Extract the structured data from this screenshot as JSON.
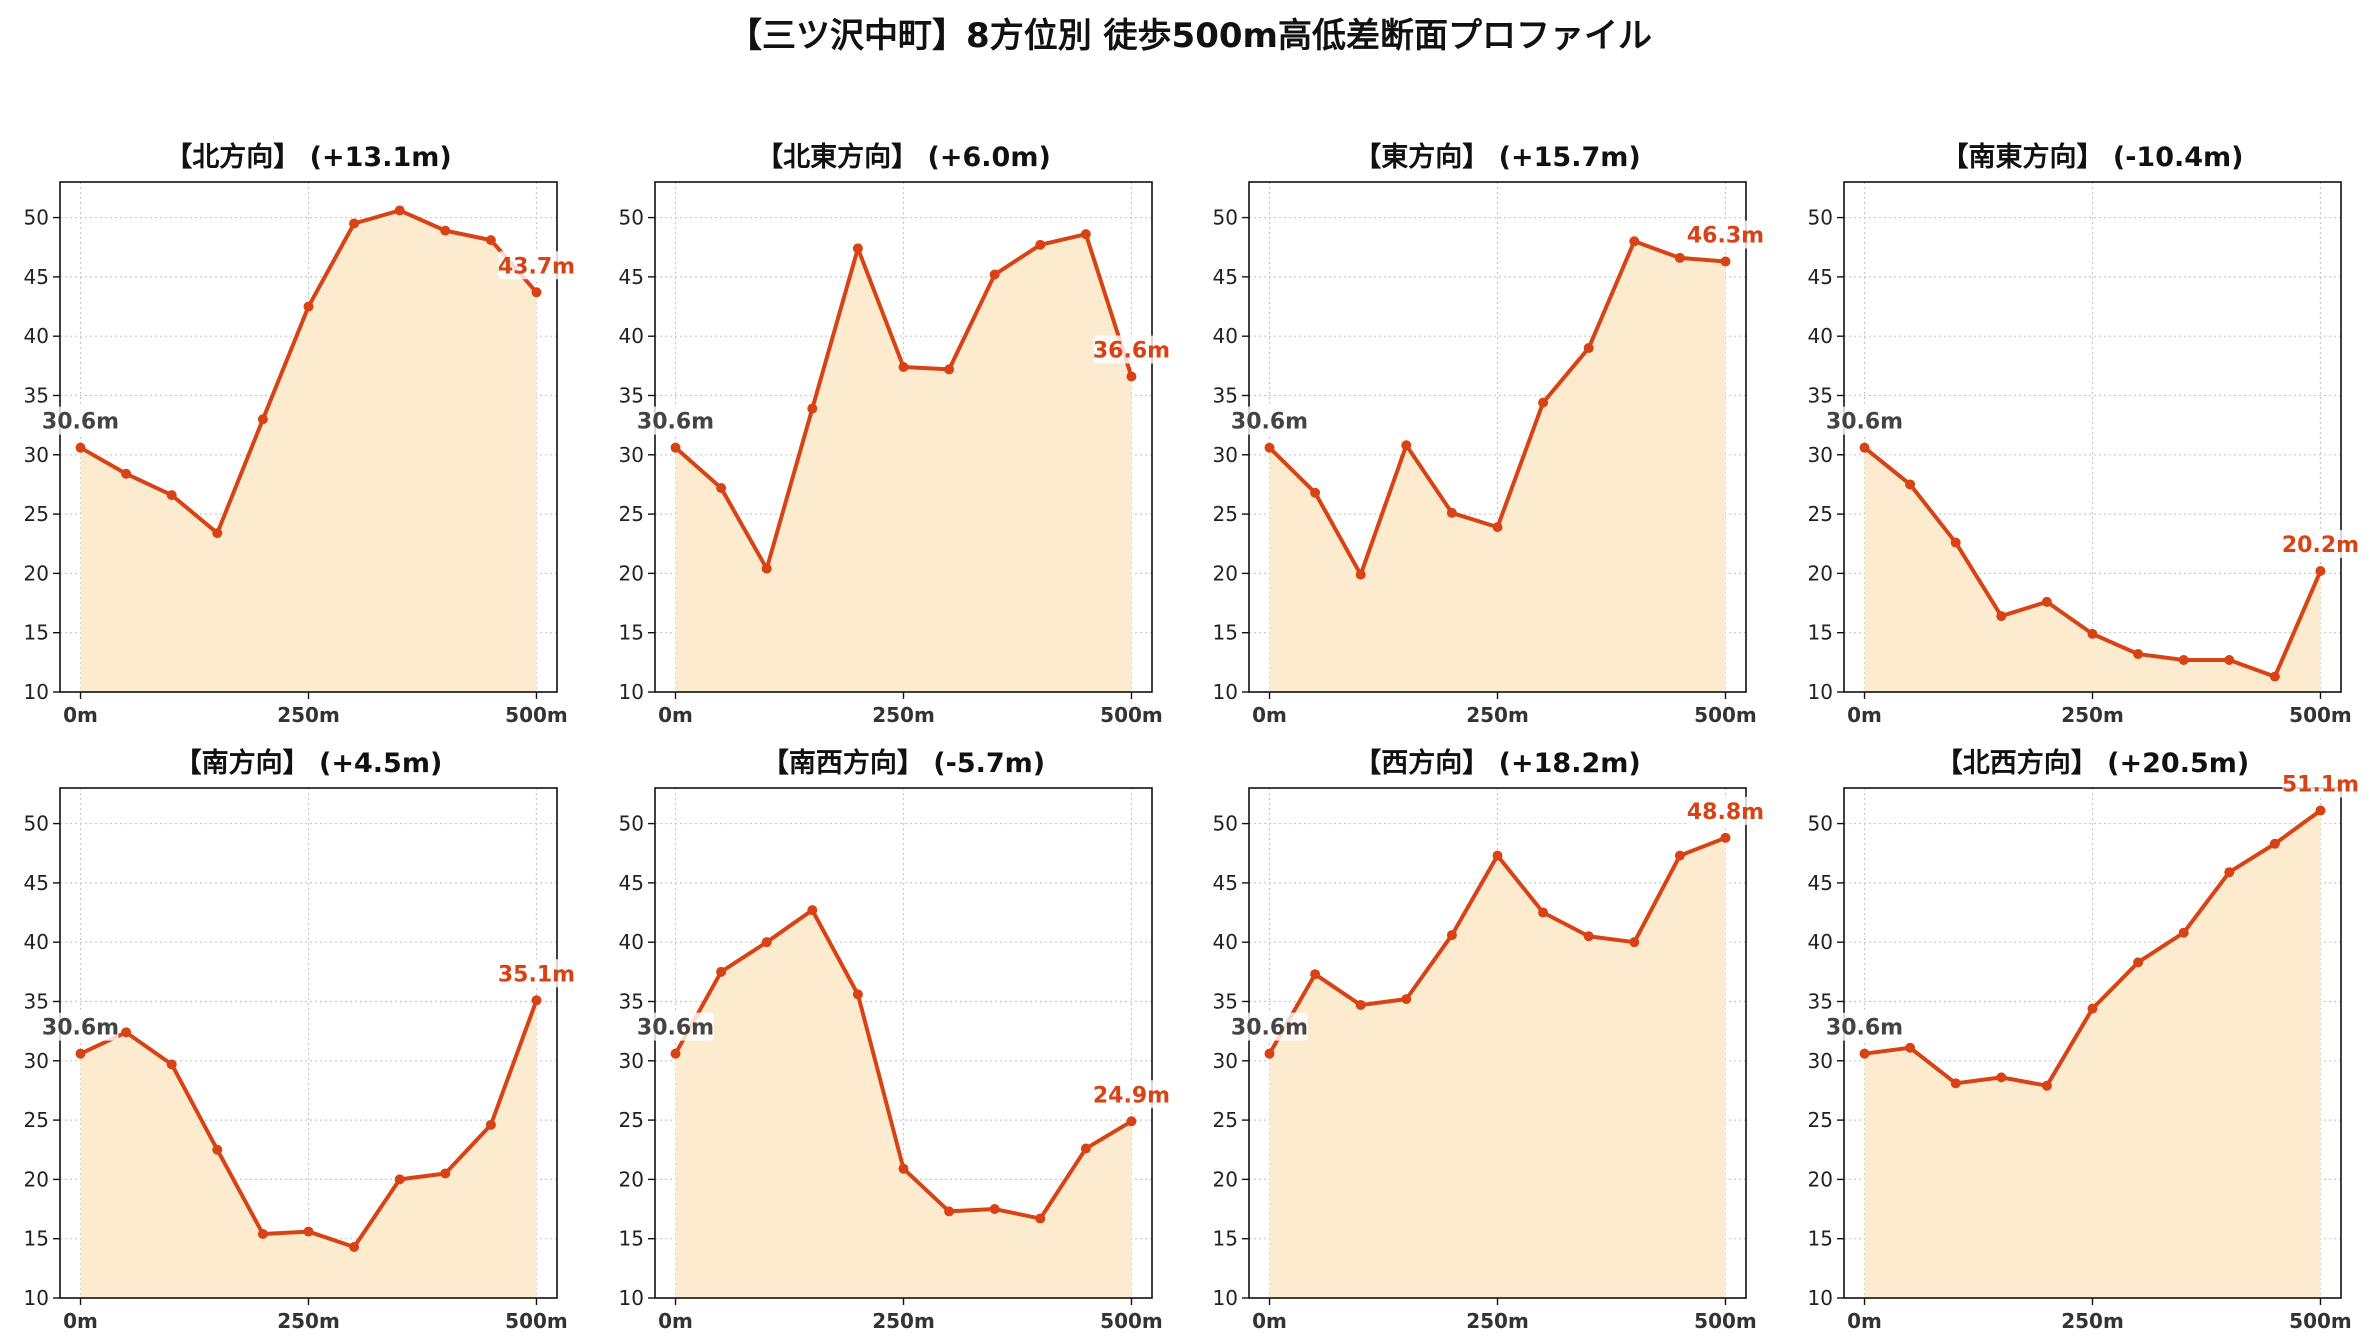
{
  "title": "【三ツ沢中町】8方位別 徒歩500m高低差断面プロファイル",
  "colors": {
    "line": "#d84315",
    "fill": "#fdebd0",
    "grid": "#c8c8c8",
    "start_label": "#444444",
    "end_label": "#d84315"
  },
  "chart_data": [
    {
      "type": "area",
      "title": "【北方向】 (+13.1m)",
      "x": [
        0,
        50,
        100,
        150,
        200,
        250,
        300,
        350,
        400,
        450,
        500
      ],
      "y": [
        30.6,
        28.4,
        26.6,
        23.4,
        33.0,
        42.5,
        49.5,
        50.6,
        48.9,
        48.1,
        43.7
      ],
      "start_label": "30.6m",
      "end_label": "43.7m",
      "ylim": [
        10,
        53
      ],
      "xlim": [
        0,
        500
      ],
      "yticks": [
        10,
        15,
        20,
        25,
        30,
        35,
        40,
        45,
        50
      ],
      "xticks": [
        0,
        250,
        500
      ],
      "xtick_labels": [
        "0m",
        "250m",
        "500m"
      ],
      "grid": true
    },
    {
      "type": "area",
      "title": "【北東方向】 (+6.0m)",
      "x": [
        0,
        50,
        100,
        150,
        200,
        250,
        300,
        350,
        400,
        450,
        500
      ],
      "y": [
        30.6,
        27.2,
        20.4,
        33.9,
        47.4,
        37.4,
        37.2,
        45.2,
        47.7,
        48.6,
        36.6
      ],
      "start_label": "30.6m",
      "end_label": "36.6m",
      "ylim": [
        10,
        53
      ],
      "xlim": [
        0,
        500
      ],
      "yticks": [
        10,
        15,
        20,
        25,
        30,
        35,
        40,
        45,
        50
      ],
      "xticks": [
        0,
        250,
        500
      ],
      "xtick_labels": [
        "0m",
        "250m",
        "500m"
      ],
      "grid": true
    },
    {
      "type": "area",
      "title": "【東方向】 (+15.7m)",
      "x": [
        0,
        50,
        100,
        150,
        200,
        250,
        300,
        350,
        400,
        450,
        500
      ],
      "y": [
        30.6,
        26.8,
        19.9,
        30.8,
        25.1,
        23.9,
        34.4,
        39.0,
        48.0,
        46.6,
        46.3
      ],
      "start_label": "30.6m",
      "end_label": "46.3m",
      "ylim": [
        10,
        53
      ],
      "xlim": [
        0,
        500
      ],
      "yticks": [
        10,
        15,
        20,
        25,
        30,
        35,
        40,
        45,
        50
      ],
      "xticks": [
        0,
        250,
        500
      ],
      "xtick_labels": [
        "0m",
        "250m",
        "500m"
      ],
      "grid": true
    },
    {
      "type": "area",
      "title": "【南東方向】 (-10.4m)",
      "x": [
        0,
        50,
        100,
        150,
        200,
        250,
        300,
        350,
        400,
        450,
        500
      ],
      "y": [
        30.6,
        27.5,
        22.6,
        16.4,
        17.6,
        14.9,
        13.2,
        12.7,
        12.7,
        11.3,
        20.2
      ],
      "start_label": "30.6m",
      "end_label": "20.2m",
      "ylim": [
        10,
        53
      ],
      "xlim": [
        0,
        500
      ],
      "yticks": [
        10,
        15,
        20,
        25,
        30,
        35,
        40,
        45,
        50
      ],
      "xticks": [
        0,
        250,
        500
      ],
      "xtick_labels": [
        "0m",
        "250m",
        "500m"
      ],
      "grid": true
    },
    {
      "type": "area",
      "title": "【南方向】 (+4.5m)",
      "x": [
        0,
        50,
        100,
        150,
        200,
        250,
        300,
        350,
        400,
        450,
        500
      ],
      "y": [
        30.6,
        32.4,
        29.7,
        22.5,
        15.4,
        15.6,
        14.3,
        20.0,
        20.5,
        24.6,
        35.1
      ],
      "start_label": "30.6m",
      "end_label": "35.1m",
      "ylim": [
        10,
        53
      ],
      "xlim": [
        0,
        500
      ],
      "yticks": [
        10,
        15,
        20,
        25,
        30,
        35,
        40,
        45,
        50
      ],
      "xticks": [
        0,
        250,
        500
      ],
      "xtick_labels": [
        "0m",
        "250m",
        "500m"
      ],
      "grid": true
    },
    {
      "type": "area",
      "title": "【南西方向】 (-5.7m)",
      "x": [
        0,
        50,
        100,
        150,
        200,
        250,
        300,
        350,
        400,
        450,
        500
      ],
      "y": [
        30.6,
        37.5,
        40.0,
        42.7,
        35.6,
        20.9,
        17.3,
        17.5,
        16.7,
        22.6,
        24.9
      ],
      "start_label": "30.6m",
      "end_label": "24.9m",
      "ylim": [
        10,
        53
      ],
      "xlim": [
        0,
        500
      ],
      "yticks": [
        10,
        15,
        20,
        25,
        30,
        35,
        40,
        45,
        50
      ],
      "xticks": [
        0,
        250,
        500
      ],
      "xtick_labels": [
        "0m",
        "250m",
        "500m"
      ],
      "grid": true
    },
    {
      "type": "area",
      "title": "【西方向】 (+18.2m)",
      "x": [
        0,
        50,
        100,
        150,
        200,
        250,
        300,
        350,
        400,
        450,
        500
      ],
      "y": [
        30.6,
        37.3,
        34.7,
        35.2,
        40.6,
        47.3,
        42.5,
        40.5,
        40.0,
        47.3,
        48.8
      ],
      "start_label": "30.6m",
      "end_label": "48.8m",
      "ylim": [
        10,
        53
      ],
      "xlim": [
        0,
        500
      ],
      "yticks": [
        10,
        15,
        20,
        25,
        30,
        35,
        40,
        45,
        50
      ],
      "xticks": [
        0,
        250,
        500
      ],
      "xtick_labels": [
        "0m",
        "250m",
        "500m"
      ],
      "grid": true
    },
    {
      "type": "area",
      "title": "【北西方向】 (+20.5m)",
      "x": [
        0,
        50,
        100,
        150,
        200,
        250,
        300,
        350,
        400,
        450,
        500
      ],
      "y": [
        30.6,
        31.1,
        28.1,
        28.6,
        27.9,
        34.4,
        38.3,
        40.8,
        45.9,
        48.3,
        51.1
      ],
      "start_label": "30.6m",
      "end_label": "51.1m",
      "ylim": [
        10,
        53
      ],
      "xlim": [
        0,
        500
      ],
      "yticks": [
        10,
        15,
        20,
        25,
        30,
        35,
        40,
        45,
        50
      ],
      "xticks": [
        0,
        250,
        500
      ],
      "xtick_labels": [
        "0m",
        "250m",
        "500m"
      ],
      "grid": true
    }
  ]
}
